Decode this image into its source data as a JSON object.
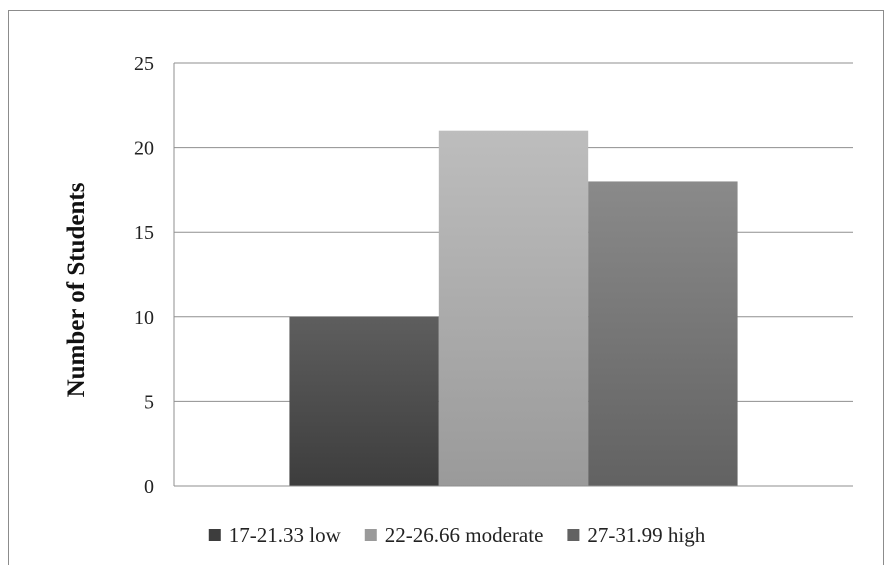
{
  "chart_data": {
    "type": "bar",
    "title": "",
    "xlabel": "",
    "ylabel": "Number of Students",
    "ylim": [
      0,
      25
    ],
    "yticks": [
      "0",
      "5",
      "10",
      "15",
      "20",
      "25"
    ],
    "grid": true,
    "legend_position": "bottom",
    "series": [
      {
        "name": "17-21.33 low",
        "value": 10,
        "color_top": "#5e5e5e",
        "color_bottom": "#3d3d3d"
      },
      {
        "name": "22-26.66 moderate",
        "value": 21,
        "color_top": "#bdbdbd",
        "color_bottom": "#9a9a9a"
      },
      {
        "name": "27-31.99 high",
        "value": 18,
        "color_top": "#8a8a8a",
        "color_bottom": "#626262"
      }
    ]
  }
}
